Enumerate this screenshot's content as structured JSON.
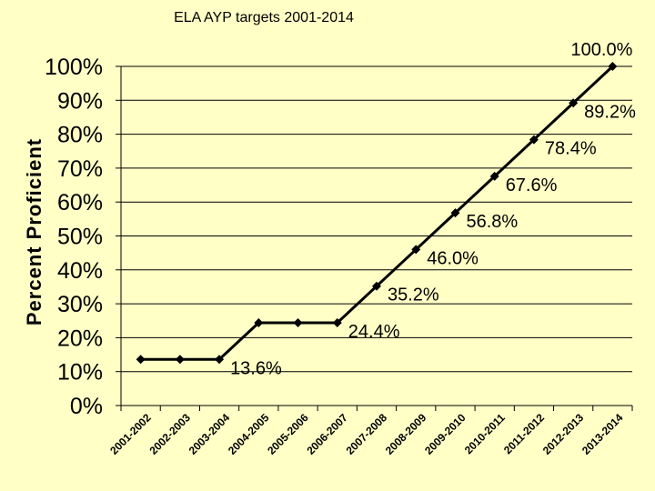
{
  "chart_data": {
    "type": "line",
    "title": "ELA AYP targets 2001-2014",
    "xlabel": "",
    "ylabel": "Percent Proficient",
    "ylim": [
      0,
      100
    ],
    "yticks": [
      "0%",
      "10%",
      "20%",
      "30%",
      "40%",
      "50%",
      "60%",
      "70%",
      "80%",
      "90%",
      "100%"
    ],
    "grid": true,
    "categories": [
      "2001-2002",
      "2002-2003",
      "2003-2004",
      "2004-2005",
      "2005-2006",
      "2006-2007",
      "2007-2008",
      "2008-2009",
      "2009-2010",
      "2010-2011",
      "2011-2012",
      "2012-2013",
      "2013-2014"
    ],
    "values": [
      13.6,
      13.6,
      13.6,
      24.4,
      24.4,
      24.4,
      35.2,
      46.0,
      56.8,
      67.6,
      78.4,
      89.2,
      100.0
    ],
    "data_labels": [
      {
        "index": 2,
        "text": "13.6%"
      },
      {
        "index": 5,
        "text": "24.4%"
      },
      {
        "index": 6,
        "text": "35.2%"
      },
      {
        "index": 7,
        "text": "46.0%"
      },
      {
        "index": 8,
        "text": "56.8%"
      },
      {
        "index": 9,
        "text": "67.6%"
      },
      {
        "index": 10,
        "text": "78.4%"
      },
      {
        "index": 11,
        "text": "89.2%"
      },
      {
        "index": 12,
        "text": "100.0%"
      }
    ],
    "colors": {
      "background": "#FFFFC6",
      "line": "#000000",
      "grid": "#000000"
    }
  }
}
